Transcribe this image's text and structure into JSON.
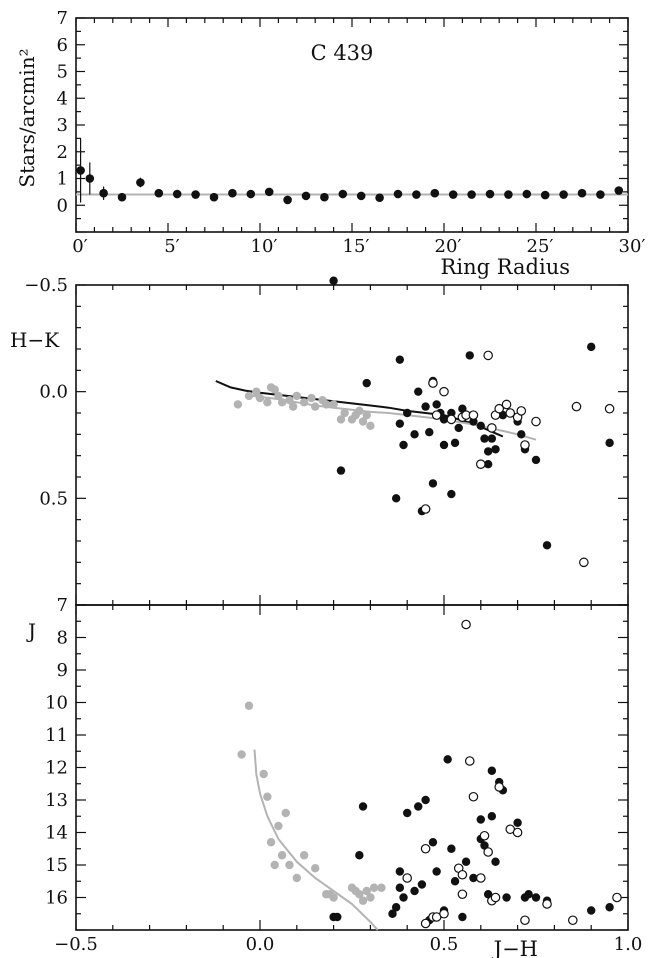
{
  "chart_data": [
    {
      "type": "scatter",
      "title": "C 439",
      "xlabel": "Ring Radius",
      "ylabel": "Stars/arcmin²",
      "xlim": [
        0,
        30
      ],
      "ylim": [
        -1,
        7
      ],
      "x_ticks": [
        0,
        5,
        10,
        15,
        20,
        25,
        30
      ],
      "x_tick_labels": [
        "0′",
        "5′",
        "10′",
        "15′",
        "20′",
        "25′",
        "30′"
      ],
      "y_ticks": [
        0,
        1,
        2,
        3,
        4,
        5,
        6,
        7
      ],
      "y_tick_labels": [
        "0",
        "1",
        "2",
        "3",
        "4",
        "5",
        "6",
        "7"
      ],
      "background_level": 0.4,
      "series": [
        {
          "x": [
            0.25,
            0.75,
            1.5,
            2.5,
            3.5,
            4.5,
            5.5,
            6.5,
            7.5,
            8.5,
            9.5,
            10.5,
            11.5,
            12.5,
            13.5,
            14.5,
            15.5,
            16.5,
            17.5,
            18.5,
            19.5,
            20.5,
            21.5,
            22.5,
            23.5,
            24.5,
            25.5,
            26.5,
            27.5,
            28.5,
            29.5
          ],
          "y": [
            1.3,
            1.0,
            0.45,
            0.3,
            0.85,
            0.45,
            0.42,
            0.4,
            0.3,
            0.45,
            0.42,
            0.5,
            0.2,
            0.35,
            0.3,
            0.42,
            0.35,
            0.28,
            0.42,
            0.4,
            0.45,
            0.4,
            0.4,
            0.42,
            0.4,
            0.42,
            0.38,
            0.4,
            0.45,
            0.4,
            0.55
          ],
          "yerr": [
            1.2,
            0.6,
            0.25,
            0.15,
            0.18,
            0.12,
            0.1,
            0.1,
            0.08,
            0.1,
            0.08,
            0.1,
            0.08,
            0.08,
            0.07,
            0.08,
            0.07,
            0.07,
            0.07,
            0.07,
            0.07,
            0.07,
            0.06,
            0.07,
            0.06,
            0.06,
            0.06,
            0.06,
            0.06,
            0.06,
            0.06
          ]
        }
      ]
    },
    {
      "type": "scatter",
      "xlabel": "",
      "ylabel": "H−K",
      "xlim": [
        -0.5,
        1.0
      ],
      "ylim": [
        1.0,
        -0.5
      ],
      "y_ticks": [
        -0.5,
        0.0,
        0.5
      ],
      "y_tick_labels": [
        "−0.5",
        "0.0",
        "0.5"
      ],
      "series": [
        {
          "marker": "gray-filled",
          "x": [
            -0.06,
            -0.03,
            -0.01,
            0.0,
            0.02,
            0.03,
            0.04,
            0.05,
            0.06,
            0.08,
            0.09,
            0.1,
            0.12,
            0.14,
            0.15,
            0.17,
            0.18,
            0.2,
            0.22,
            0.23,
            0.25,
            0.26,
            0.27,
            0.28,
            0.29,
            0.3
          ],
          "y": [
            0.06,
            0.02,
            0.0,
            0.03,
            0.05,
            -0.02,
            -0.01,
            0.02,
            0.05,
            0.04,
            0.07,
            0.02,
            0.05,
            0.03,
            0.07,
            0.04,
            0.06,
            0.06,
            0.13,
            0.1,
            0.13,
            0.11,
            0.09,
            0.14,
            0.11,
            0.16
          ]
        },
        {
          "marker": "black-filled",
          "x": [
            0.2,
            0.22,
            0.29,
            0.37,
            0.38,
            0.38,
            0.39,
            0.4,
            0.42,
            0.43,
            0.44,
            0.45,
            0.46,
            0.47,
            0.47,
            0.48,
            0.49,
            0.5,
            0.5,
            0.52,
            0.52,
            0.53,
            0.54,
            0.55,
            0.56,
            0.57,
            0.58,
            0.6,
            0.61,
            0.62,
            0.62,
            0.63,
            0.64,
            0.65,
            0.66,
            0.7,
            0.71,
            0.72,
            0.75,
            0.78,
            0.9,
            0.95
          ],
          "y": [
            -0.52,
            0.37,
            -0.04,
            0.5,
            -0.15,
            0.15,
            0.25,
            0.1,
            0.2,
            0.0,
            0.56,
            0.07,
            0.19,
            -0.05,
            0.43,
            0.06,
            0.1,
            0.13,
            0.25,
            0.1,
            0.48,
            0.24,
            0.17,
            0.08,
            0.11,
            -0.17,
            0.14,
            0.16,
            0.22,
            0.28,
            0.34,
            0.22,
            0.27,
            0.1,
            0.11,
            0.14,
            0.2,
            0.27,
            0.32,
            0.72,
            -0.21,
            0.24
          ]
        },
        {
          "marker": "open",
          "x": [
            0.45,
            0.47,
            0.48,
            0.5,
            0.52,
            0.55,
            0.56,
            0.58,
            0.6,
            0.62,
            0.63,
            0.64,
            0.65,
            0.67,
            0.68,
            0.7,
            0.71,
            0.72,
            0.75,
            0.86,
            0.88,
            0.95
          ],
          "y": [
            0.55,
            -0.04,
            0.11,
            0.0,
            0.13,
            0.12,
            0.11,
            0.11,
            0.34,
            -0.17,
            0.17,
            0.11,
            0.08,
            0.06,
            0.1,
            0.12,
            0.09,
            0.25,
            0.14,
            0.07,
            0.8,
            0.08
          ]
        }
      ],
      "curves": [
        {
          "color": "#111111",
          "x": [
            -0.12,
            -0.08,
            -0.04,
            0.0,
            0.05,
            0.1,
            0.15,
            0.2,
            0.25,
            0.3,
            0.35,
            0.4,
            0.45,
            0.5,
            0.52,
            0.55,
            0.58,
            0.6,
            0.62,
            0.64,
            0.66
          ],
          "y": [
            -0.05,
            -0.02,
            -0.005,
            0.005,
            0.015,
            0.025,
            0.035,
            0.045,
            0.055,
            0.065,
            0.075,
            0.09,
            0.1,
            0.11,
            0.12,
            0.135,
            0.15,
            0.165,
            0.18,
            0.195,
            0.21
          ]
        },
        {
          "color": "#b3b3b3",
          "x": [
            -0.02,
            0.05,
            0.1,
            0.15,
            0.2,
            0.25,
            0.3,
            0.35,
            0.4,
            0.45,
            0.5,
            0.55,
            0.6,
            0.65,
            0.7,
            0.75
          ],
          "y": [
            0.02,
            0.035,
            0.05,
            0.065,
            0.075,
            0.085,
            0.095,
            0.1,
            0.11,
            0.12,
            0.13,
            0.145,
            0.16,
            0.18,
            0.2,
            0.225
          ]
        }
      ]
    },
    {
      "type": "scatter",
      "xlabel": "J−H",
      "ylabel": "J",
      "xlim": [
        -0.5,
        1.0
      ],
      "ylim": [
        17,
        7
      ],
      "x_ticks": [
        -0.5,
        0.0,
        0.5,
        1.0
      ],
      "x_tick_labels": [
        "−0.5",
        "0.0",
        "0.5",
        "1.0"
      ],
      "y_ticks": [
        7,
        8,
        9,
        10,
        11,
        12,
        13,
        14,
        15,
        16
      ],
      "y_tick_labels": [
        "7",
        "8",
        "9",
        "10",
        "11",
        "12",
        "13",
        "14",
        "15",
        "16"
      ],
      "series": [
        {
          "marker": "gray-filled",
          "x": [
            -0.05,
            -0.03,
            0.01,
            0.02,
            0.03,
            0.04,
            0.05,
            0.06,
            0.07,
            0.08,
            0.1,
            0.12,
            0.15,
            0.18,
            0.19,
            0.2,
            0.25,
            0.26,
            0.27,
            0.28,
            0.29,
            0.3
          ],
          "y": [
            11.6,
            10.1,
            12.2,
            12.9,
            14.3,
            15.0,
            13.8,
            14.7,
            13.4,
            15.0,
            15.4,
            14.7,
            15.1,
            15.9,
            15.9,
            16.0,
            15.7,
            15.8,
            15.9,
            16.1,
            15.8,
            16.0
          ],
          "extra_x": [
            0.31,
            0.33
          ],
          "extra_y": [
            15.7,
            15.7
          ]
        },
        {
          "marker": "black-filled",
          "x": [
            0.2,
            0.21,
            0.27,
            0.28,
            0.36,
            0.37,
            0.38,
            0.38,
            0.39,
            0.4,
            0.42,
            0.43,
            0.44,
            0.45,
            0.46,
            0.47,
            0.48,
            0.5,
            0.51,
            0.52,
            0.53,
            0.55,
            0.56,
            0.58,
            0.6,
            0.6,
            0.61,
            0.62,
            0.63,
            0.63,
            0.64,
            0.65,
            0.66,
            0.67,
            0.7,
            0.72,
            0.73,
            0.75,
            0.78,
            0.9,
            0.95
          ],
          "y": [
            16.6,
            16.6,
            14.7,
            13.2,
            16.5,
            16.3,
            15.2,
            15.7,
            16.0,
            13.4,
            15.8,
            13.2,
            15.6,
            13.0,
            16.7,
            14.3,
            15.2,
            16.4,
            11.75,
            14.5,
            15.5,
            16.6,
            14.9,
            15.4,
            13.6,
            14.2,
            14.4,
            15.9,
            12.1,
            13.5,
            14.9,
            12.45,
            12.7,
            16.0,
            13.7,
            16.0,
            15.9,
            16.0,
            16.1,
            16.4,
            16.3
          ]
        },
        {
          "marker": "open",
          "x": [
            0.4,
            0.45,
            0.45,
            0.47,
            0.48,
            0.5,
            0.54,
            0.55,
            0.55,
            0.56,
            0.57,
            0.58,
            0.6,
            0.61,
            0.62,
            0.63,
            0.64,
            0.65,
            0.68,
            0.7,
            0.72,
            0.78,
            0.85,
            0.97
          ],
          "y": [
            15.4,
            16.8,
            14.5,
            16.6,
            16.6,
            16.5,
            15.1,
            15.3,
            15.9,
            7.6,
            11.8,
            12.9,
            15.4,
            14.1,
            14.6,
            16.1,
            16.0,
            12.6,
            13.9,
            14.0,
            16.7,
            16.2,
            16.7,
            16.0
          ]
        }
      ],
      "curves": [
        {
          "color": "#b3b3b3",
          "x": [
            -0.015,
            -0.01,
            0.0,
            0.02,
            0.05,
            0.1,
            0.15,
            0.2,
            0.25,
            0.3,
            0.32
          ],
          "y": [
            11.45,
            12.2,
            12.8,
            13.5,
            14.2,
            14.9,
            15.4,
            15.8,
            16.2,
            16.75,
            17.0
          ]
        }
      ]
    }
  ]
}
